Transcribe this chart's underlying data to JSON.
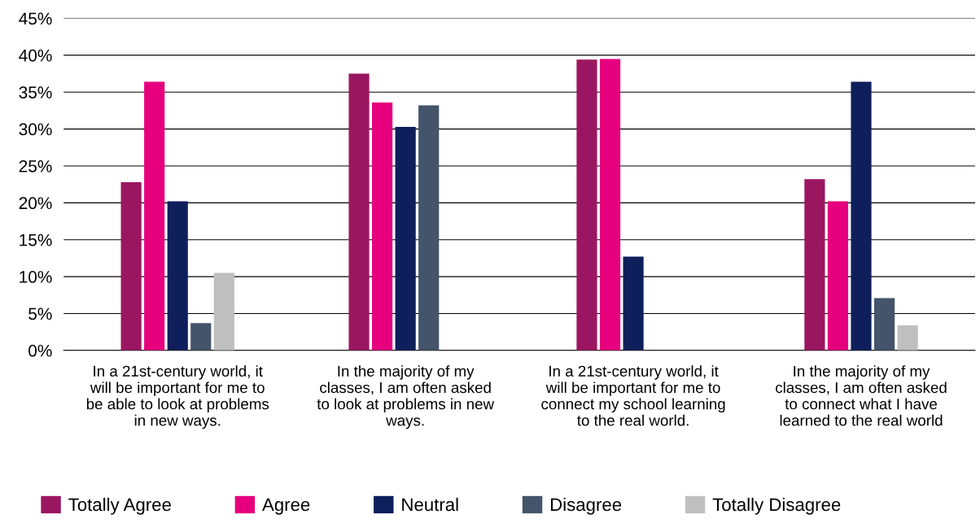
{
  "chart_data": {
    "type": "bar",
    "categories": [
      "In a 21st-century world, it will be important for me to be able to look at problems in new ways.",
      "In the majority of my classes, I am often asked to look at problems in new ways.",
      "In a 21st-century world, it will be important for me to connect my school learning to the real world.",
      "In the majority of my classes, I am often asked to connect what I have learned to the real world"
    ],
    "series": [
      {
        "name": "Totally Agree",
        "color": "#9b1660",
        "values": [
          22.8,
          37.5,
          39.4,
          23.2
        ]
      },
      {
        "name": "Agree",
        "color": "#e6007e",
        "values": [
          36.4,
          33.6,
          39.5,
          20.2
        ]
      },
      {
        "name": "Neutral",
        "color": "#0e1f5b",
        "values": [
          20.2,
          30.3,
          12.7,
          36.4
        ]
      },
      {
        "name": "Disagree",
        "color": "#44546a",
        "values": [
          3.7,
          33.2,
          null,
          7.1
        ]
      },
      {
        "name": "Totally Disagree",
        "color": "#bfbfbf",
        "values": [
          10.5,
          null,
          null,
          3.4
        ]
      }
    ],
    "ylim": [
      0,
      45
    ],
    "yticks": [
      {
        "value": 0,
        "label": "0%"
      },
      {
        "value": 5,
        "label": "5%"
      },
      {
        "value": 10,
        "label": "10%"
      },
      {
        "value": 15,
        "label": "15%"
      },
      {
        "value": 20,
        "label": "20%"
      },
      {
        "value": 25,
        "label": "25%"
      },
      {
        "value": 30,
        "label": "30%"
      },
      {
        "value": 35,
        "label": "35%"
      },
      {
        "value": 40,
        "label": "40%"
      },
      {
        "value": 45,
        "label": "45%"
      }
    ],
    "grid": "y",
    "legend": "bottom"
  }
}
